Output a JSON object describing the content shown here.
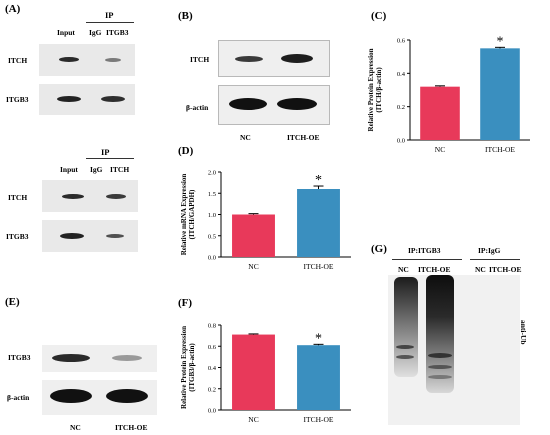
{
  "panels": {
    "A": {
      "label": "(A)",
      "top": {
        "ip": "IP",
        "lanes": [
          "Input",
          "IgG",
          "ITGB3"
        ],
        "rows": [
          "ITCH",
          "ITGB3"
        ]
      },
      "bottom": {
        "ip": "IP",
        "lanes": [
          "Input",
          "IgG",
          "ITCH"
        ],
        "rows": [
          "ITCH",
          "ITGB3"
        ]
      }
    },
    "B": {
      "label": "(B)",
      "rows": [
        "ITCH",
        "β-actin"
      ],
      "lanes": [
        "NC",
        "ITCH-OE"
      ]
    },
    "E": {
      "label": "(E)",
      "rows": [
        "ITGB3",
        "β-actin"
      ],
      "lanes": [
        "NC",
        "ITCH-OE"
      ]
    },
    "G": {
      "label": "(G)",
      "ip1": "IP:ITGB3",
      "ip2": "IP:IgG",
      "lanes": [
        "NC",
        "ITCH-OE",
        "NC",
        "ITCH-OE"
      ],
      "side": "anti-Ub"
    }
  },
  "chart_data": [
    {
      "panel": "(C)",
      "type": "bar",
      "categories": [
        "NC",
        "ITCH-OE"
      ],
      "values": [
        0.32,
        0.55
      ],
      "errors": [
        0.005,
        0.006
      ],
      "colors": [
        "#e8395a",
        "#3a8fbf"
      ],
      "ylabel_line1": "Relative Protein Expression",
      "ylabel_line2": "(ITCH/β-actin)",
      "ylim": [
        0,
        0.6
      ],
      "yticks": [
        "0.0",
        "0.2",
        "0.4",
        "0.6"
      ],
      "annotation": "*"
    },
    {
      "panel": "(D)",
      "type": "bar",
      "categories": [
        "NC",
        "ITCH-OE"
      ],
      "values": [
        1.0,
        1.6
      ],
      "errors": [
        0.02,
        0.07
      ],
      "colors": [
        "#e8395a",
        "#3a8fbf"
      ],
      "ylabel_line1": "Relative mRNA Expression",
      "ylabel_line2": "(ITCH/GAPDH)",
      "ylim": [
        0,
        2.0
      ],
      "yticks": [
        "0.0",
        "0.5",
        "1.0",
        "1.5",
        "2.0"
      ],
      "annotation": "*"
    },
    {
      "panel": "(F)",
      "type": "bar",
      "categories": [
        "NC",
        "ITCH-OE"
      ],
      "values": [
        0.71,
        0.61
      ],
      "errors": [
        0.006,
        0.008
      ],
      "colors": [
        "#e8395a",
        "#3a8fbf"
      ],
      "ylabel_line1": "Relative Protein Expression",
      "ylabel_line2": "(ITGB3/β-actin)",
      "ylim": [
        0,
        0.8
      ],
      "yticks": [
        "0.0",
        "0.2",
        "0.4",
        "0.6",
        "0.8"
      ],
      "annotation": "*"
    }
  ]
}
